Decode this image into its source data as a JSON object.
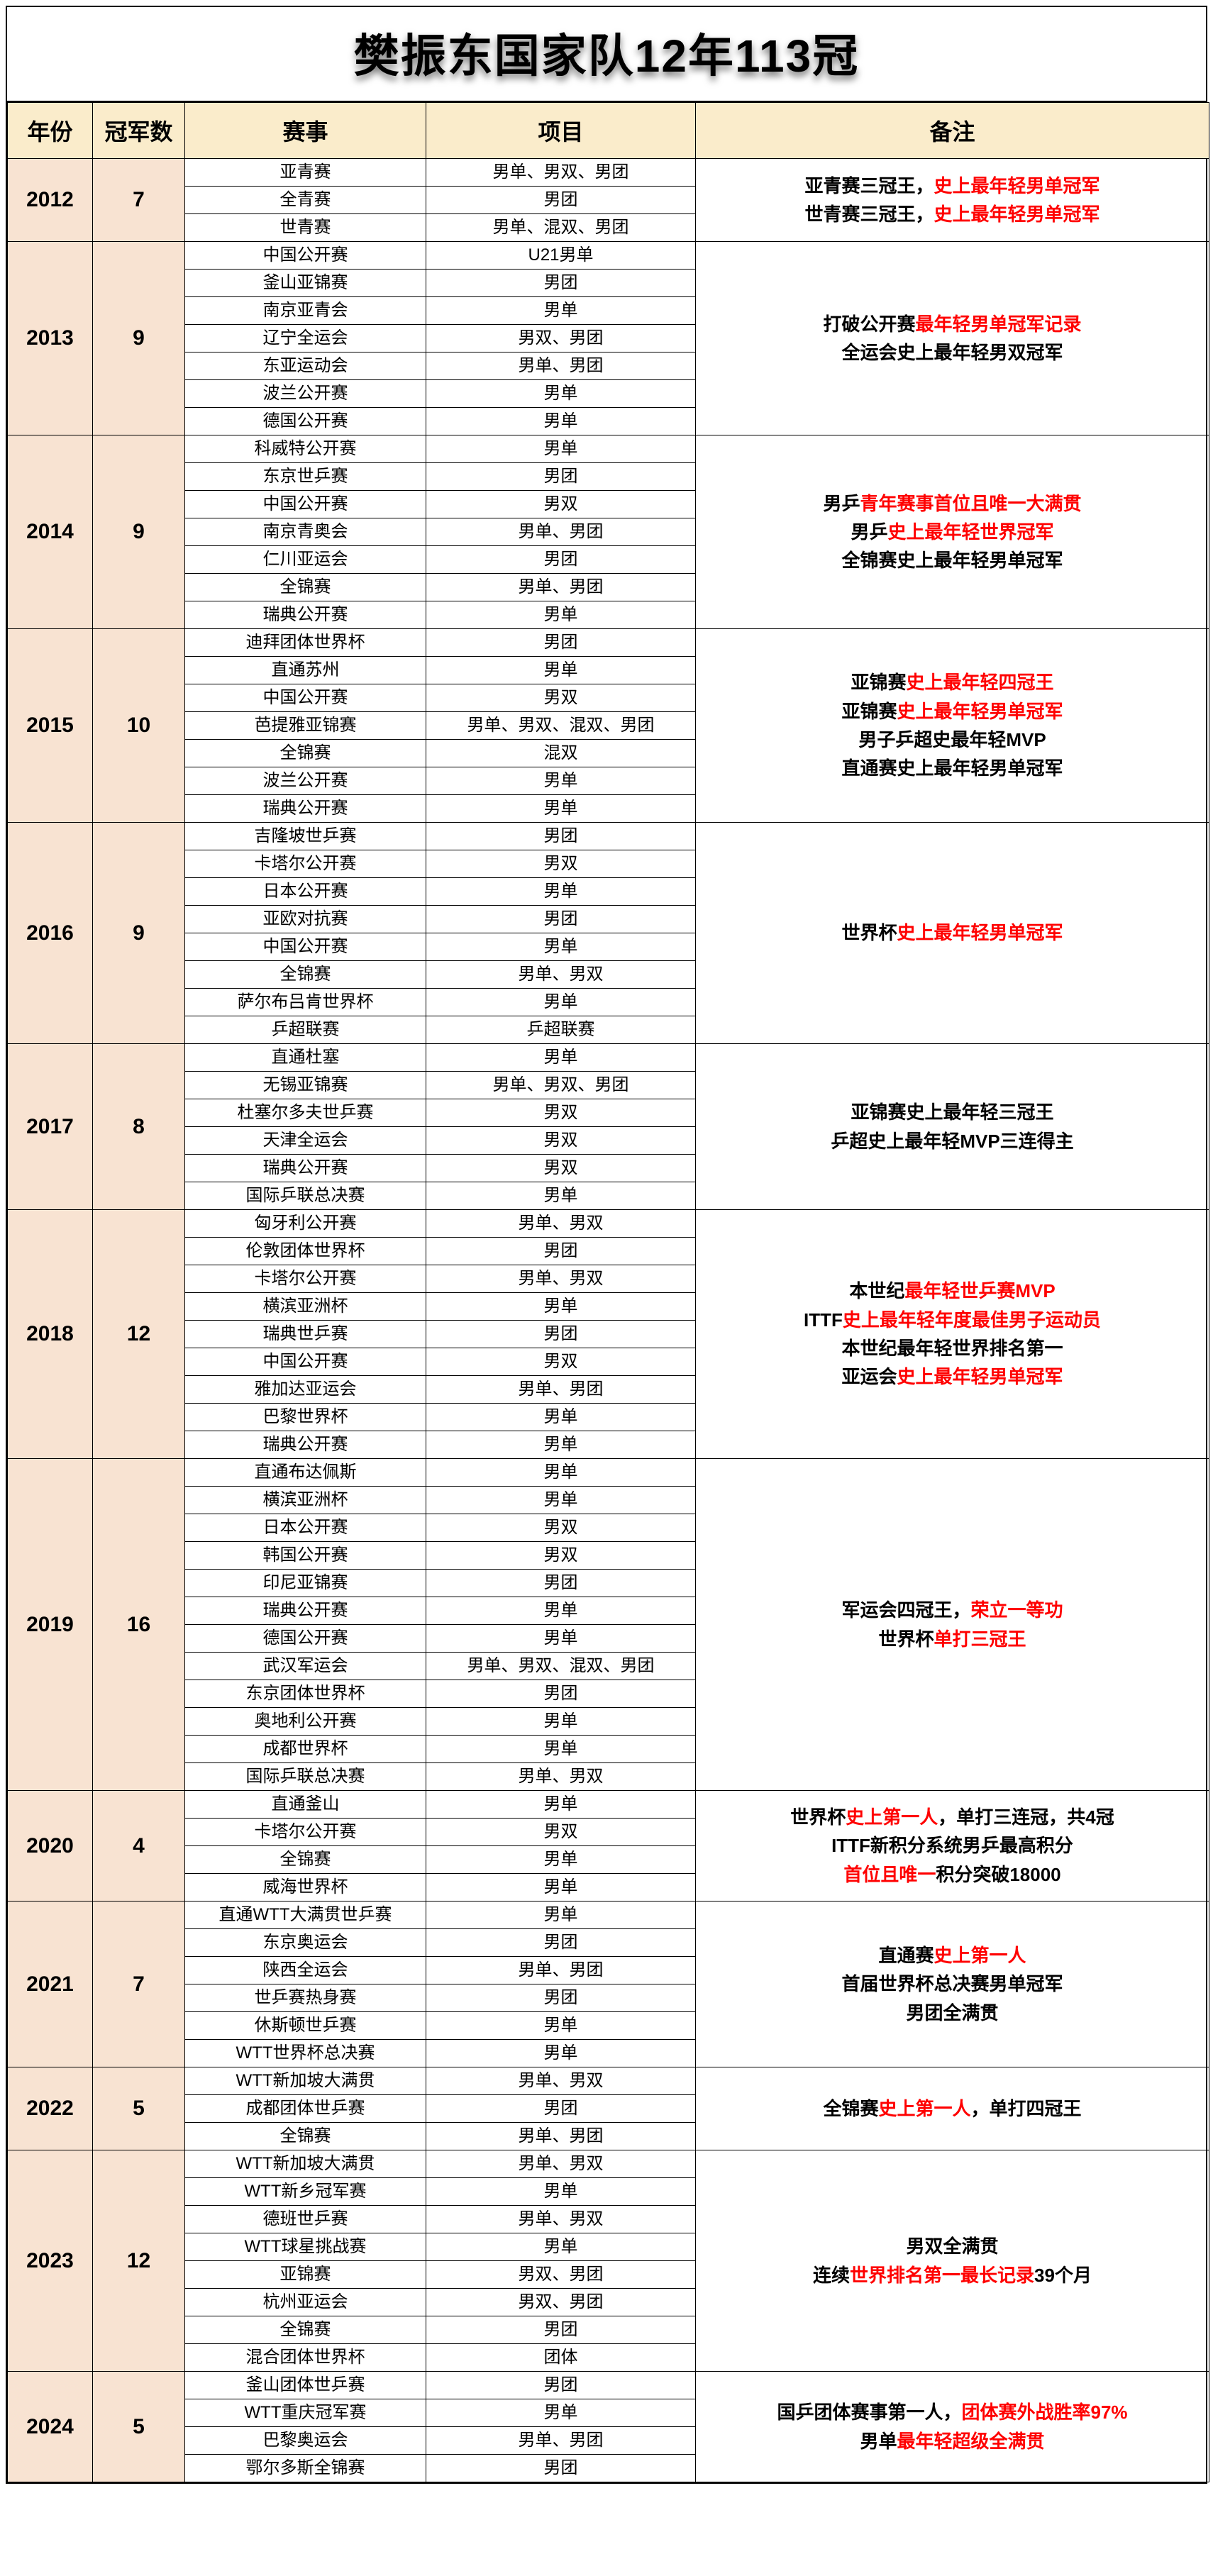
{
  "title": "樊振东国家队12年113冠",
  "columns": [
    "年份",
    "冠军数",
    "赛事",
    "项目",
    "备注"
  ],
  "colors": {
    "header_bg": "#faeccb",
    "year_bg": "#f8e3d2",
    "highlight": "#ff0000",
    "border": "#000000"
  },
  "years": [
    {
      "year": "2012",
      "count": "7",
      "rows": [
        {
          "event": "亚青赛",
          "item": "男单、男双、男团"
        },
        {
          "event": "全青赛",
          "item": "男团"
        },
        {
          "event": "世青赛",
          "item": "男单、混双、男团"
        }
      ],
      "note": [
        {
          "t": "亚青赛三冠王，",
          "r": false
        },
        {
          "t": "史上最年轻男单冠军",
          "r": true
        },
        {
          "br": true
        },
        {
          "t": "世青赛三冠王，",
          "r": false
        },
        {
          "t": "史上最年轻男单冠军",
          "r": true
        }
      ]
    },
    {
      "year": "2013",
      "count": "9",
      "rows": [
        {
          "event": "中国公开赛",
          "item": "U21男单"
        },
        {
          "event": "釜山亚锦赛",
          "item": "男团"
        },
        {
          "event": "南京亚青会",
          "item": "男单"
        },
        {
          "event": "辽宁全运会",
          "item": "男双、男团"
        },
        {
          "event": "东亚运动会",
          "item": "男单、男团"
        },
        {
          "event": "波兰公开赛",
          "item": "男单"
        },
        {
          "event": "德国公开赛",
          "item": "男单"
        }
      ],
      "note": [
        {
          "t": "打破公开赛",
          "r": false
        },
        {
          "t": "最年轻男单冠军记录",
          "r": true
        },
        {
          "br": true
        },
        {
          "t": "全运会史上最年轻男双冠军",
          "r": false
        }
      ]
    },
    {
      "year": "2014",
      "count": "9",
      "rows": [
        {
          "event": "科威特公开赛",
          "item": "男单"
        },
        {
          "event": "东京世乒赛",
          "item": "男团"
        },
        {
          "event": "中国公开赛",
          "item": "男双"
        },
        {
          "event": "南京青奥会",
          "item": "男单、男团"
        },
        {
          "event": "仁川亚运会",
          "item": "男团"
        },
        {
          "event": "全锦赛",
          "item": "男单、男团"
        },
        {
          "event": "瑞典公开赛",
          "item": "男单"
        }
      ],
      "note": [
        {
          "t": "男乒",
          "r": false
        },
        {
          "t": "青年赛事首位且唯一大满贯",
          "r": true
        },
        {
          "br": true
        },
        {
          "t": "男乒",
          "r": false
        },
        {
          "t": "史上最年轻世界冠军",
          "r": true
        },
        {
          "br": true
        },
        {
          "t": "全锦赛史上最年轻男单冠军",
          "r": false
        }
      ]
    },
    {
      "year": "2015",
      "count": "10",
      "rows": [
        {
          "event": "迪拜团体世界杯",
          "item": "男团"
        },
        {
          "event": "直通苏州",
          "item": "男单"
        },
        {
          "event": "中国公开赛",
          "item": "男双"
        },
        {
          "event": "芭提雅亚锦赛",
          "item": "男单、男双、混双、男团"
        },
        {
          "event": "全锦赛",
          "item": "混双"
        },
        {
          "event": "波兰公开赛",
          "item": "男单"
        },
        {
          "event": "瑞典公开赛",
          "item": "男单"
        }
      ],
      "note": [
        {
          "t": "亚锦赛",
          "r": false
        },
        {
          "t": "史上最年轻四冠王",
          "r": true
        },
        {
          "br": true
        },
        {
          "t": "亚锦赛",
          "r": false
        },
        {
          "t": "史上最年轻男单冠军",
          "r": true
        },
        {
          "br": true
        },
        {
          "t": "男子乒超史最年轻MVP",
          "r": false
        },
        {
          "br": true
        },
        {
          "t": "直通赛史上最年轻男单冠军",
          "r": false
        }
      ]
    },
    {
      "year": "2016",
      "count": "9",
      "rows": [
        {
          "event": "吉隆坡世乒赛",
          "item": "男团"
        },
        {
          "event": "卡塔尔公开赛",
          "item": "男双"
        },
        {
          "event": "日本公开赛",
          "item": "男单"
        },
        {
          "event": "亚欧对抗赛",
          "item": "男团"
        },
        {
          "event": "中国公开赛",
          "item": "男单"
        },
        {
          "event": "全锦赛",
          "item": "男单、男双"
        },
        {
          "event": "萨尔布吕肯世界杯",
          "item": "男单"
        },
        {
          "event": "乒超联赛",
          "item": "乒超联赛"
        }
      ],
      "note": [
        {
          "t": "世界杯",
          "r": false
        },
        {
          "t": "史上最年轻男单冠军",
          "r": true
        }
      ]
    },
    {
      "year": "2017",
      "count": "8",
      "rows": [
        {
          "event": "直通杜塞",
          "item": "男单"
        },
        {
          "event": "无锡亚锦赛",
          "item": "男单、男双、男团"
        },
        {
          "event": "杜塞尔多夫世乒赛",
          "item": "男双"
        },
        {
          "department": "",
          "event": "天津全运会",
          "item": "男双"
        },
        {
          "event": "瑞典公开赛",
          "item": "男双"
        },
        {
          "event": "国际乒联总决赛",
          "item": "男单"
        }
      ],
      "note": [
        {
          "t": "亚锦赛史上最年轻三冠王",
          "r": false
        },
        {
          "br": true
        },
        {
          "t": "乒超史上最年轻MVP三连得主",
          "r": false
        }
      ]
    },
    {
      "year": "2018",
      "count": "12",
      "rows": [
        {
          "event": "匈牙利公开赛",
          "item": "男单、男双"
        },
        {
          "event": "伦敦团体世界杯",
          "item": "男团"
        },
        {
          "event": "卡塔尔公开赛",
          "item": "男单、男双"
        },
        {
          "event": "横滨亚洲杯",
          "item": "男单"
        },
        {
          "event": "瑞典世乒赛",
          "item": "男团"
        },
        {
          "event": "中国公开赛",
          "item": "男双"
        },
        {
          "event": "雅加达亚运会",
          "item": "男单、男团"
        },
        {
          "event": "巴黎世界杯",
          "item": "男单"
        },
        {
          "event": "瑞典公开赛",
          "item": "男单"
        }
      ],
      "note": [
        {
          "t": "本世纪",
          "r": false
        },
        {
          "t": "最年轻世乒赛MVP",
          "r": true
        },
        {
          "br": true
        },
        {
          "t": "ITTF",
          "r": false
        },
        {
          "t": "史上最年轻年度最佳男子运动员",
          "r": true
        },
        {
          "br": true
        },
        {
          "t": "本世纪最年轻世界排名第一",
          "r": false
        },
        {
          "br": true
        },
        {
          "t": "亚运会",
          "r": false
        },
        {
          "t": "史上最年轻男单冠军",
          "r": true
        }
      ]
    },
    {
      "year": "2019",
      "count": "16",
      "rows": [
        {
          "event": "直通布达佩斯",
          "item": "男单"
        },
        {
          "event": "横滨亚洲杯",
          "item": "男单"
        },
        {
          "event": "日本公开赛",
          "item": "男双"
        },
        {
          "event": "韩国公开赛",
          "item": "男双"
        },
        {
          "event": "印尼亚锦赛",
          "item": "男团"
        },
        {
          "event": "瑞典公开赛",
          "item": "男单"
        },
        {
          "event": "德国公开赛",
          "item": "男单"
        },
        {
          "event": "武汉军运会",
          "item": "男单、男双、混双、男团"
        },
        {
          "event": "东京团体世界杯",
          "item": "男团"
        },
        {
          "event": "奥地利公开赛",
          "item": "男单"
        },
        {
          "event": "成都世界杯",
          "item": "男单"
        },
        {
          "event": "国际乒联总决赛",
          "item": "男单、男双"
        }
      ],
      "note": [
        {
          "t": "军运会四冠王，",
          "r": false
        },
        {
          "t": "荣立一等功",
          "r": true
        },
        {
          "br": true
        },
        {
          "t": "世界杯",
          "r": false
        },
        {
          "t": "单打三冠王",
          "r": true
        }
      ]
    },
    {
      "year": "2020",
      "count": "4",
      "rows": [
        {
          "event": "直通釜山",
          "item": "男单"
        },
        {
          "event": "卡塔尔公开赛",
          "item": "男双"
        },
        {
          "event": "全锦赛",
          "item": "男单"
        },
        {
          "event": "威海世界杯",
          "item": "男单"
        }
      ],
      "note": [
        {
          "t": "世界杯",
          "r": false
        },
        {
          "t": "史上第一人",
          "r": true
        },
        {
          "t": "，单打三连冠，共4冠",
          "r": false
        },
        {
          "br": true
        },
        {
          "t": "ITTF新积分系统男乒最高积分",
          "r": false
        },
        {
          "br": true
        },
        {
          "t": "首位且唯一",
          "r": true
        },
        {
          "t": "积分突破18000",
          "r": false
        }
      ]
    },
    {
      "year": "2021",
      "count": "7",
      "rows": [
        {
          "event": "直通WTT大满贯世乒赛",
          "item": "男单"
        },
        {
          "event": "东京奥运会",
          "item": "男团"
        },
        {
          "event": "陕西全运会",
          "item": "男单、男团"
        },
        {
          "event": "世乒赛热身赛",
          "item": "男团"
        },
        {
          "event": "休斯顿世乒赛",
          "item": "男单"
        },
        {
          "event": "WTT世界杯总决赛",
          "item": "男单"
        }
      ],
      "note": [
        {
          "t": "直通赛",
          "r": false
        },
        {
          "t": "史上第一人",
          "r": true
        },
        {
          "br": true
        },
        {
          "t": "首届世界杯总决赛男单冠军",
          "r": false
        },
        {
          "br": true
        },
        {
          "t": "男团全满贯",
          "r": false
        }
      ]
    },
    {
      "year": "2022",
      "count": "5",
      "rows": [
        {
          "event": "WTT新加坡大满贯",
          "item": "男单、男双"
        },
        {
          "event": "成都团体世乒赛",
          "item": "男团"
        },
        {
          "event": "全锦赛",
          "item": "男单、男团"
        }
      ],
      "note": [
        {
          "t": "全锦赛",
          "r": false
        },
        {
          "t": "史上第一人",
          "r": true
        },
        {
          "t": "，单打四冠王",
          "r": false
        }
      ]
    },
    {
      "year": "2023",
      "count": "12",
      "rows": [
        {
          "event": "WTT新加坡大满贯",
          "item": "男单、男双"
        },
        {
          "event": "WTT新乡冠军赛",
          "item": "男单"
        },
        {
          "event": "德班世乒赛",
          "item": "男单、男双"
        },
        {
          "event": "WTT球星挑战赛",
          "item": "男单"
        },
        {
          "event": "亚锦赛",
          "item": "男双、男团"
        },
        {
          "event": "杭州亚运会",
          "item": "男双、男团"
        },
        {
          "event": "全锦赛",
          "item": "男团"
        },
        {
          "event": "混合团体世界杯",
          "item": "团体"
        }
      ],
      "note": [
        {
          "t": "男双全满贯",
          "r": false
        },
        {
          "br": true
        },
        {
          "t": "连续",
          "r": false
        },
        {
          "t": "世界排名第一最长记录",
          "r": true
        },
        {
          "t": "39个月",
          "r": false
        }
      ]
    },
    {
      "year": "2024",
      "count": "5",
      "rows": [
        {
          "event": "釜山团体世乒赛",
          "item": "男团"
        },
        {
          "event": "WTT重庆冠军赛",
          "item": "男单"
        },
        {
          "event": "巴黎奥运会",
          "item": "男单、男团"
        },
        {
          "event": "鄂尔多斯全锦赛",
          "item": "男团"
        }
      ],
      "note": [
        {
          "t": "国乒团体赛事第一人，",
          "r": false
        },
        {
          "t": "团体赛外战胜率97%",
          "r": true
        },
        {
          "br": true
        },
        {
          "t": "男单",
          "r": false
        },
        {
          "t": "最年轻超级全满贯",
          "r": true
        }
      ]
    }
  ]
}
